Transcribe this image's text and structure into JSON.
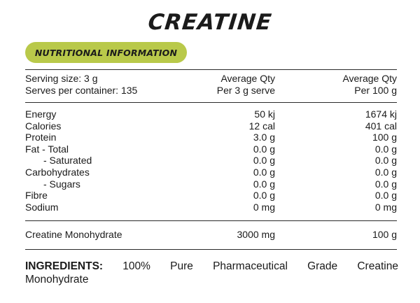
{
  "title": "CREATINE",
  "header_badge": "NUTRITIONAL INFORMATION",
  "serving": {
    "size": "Serving size:  3 g",
    "per_container": "Serves per container: 135",
    "col2_line1": "Average Qty",
    "col2_line2": "Per 3 g serve",
    "col3_line1": "Average Qty",
    "col3_line2": "Per 100 g"
  },
  "nutrients": [
    {
      "name": "Energy",
      "per_serve": "50 kj",
      "per_100g": "1674 kj"
    },
    {
      "name": "Calories",
      "per_serve": "12 cal",
      "per_100g": "401 cal"
    },
    {
      "name": "Protein",
      "per_serve": "3.0 g",
      "per_100g": "100 g"
    },
    {
      "name": "Fat - Total",
      "per_serve": "0.0 g",
      "per_100g": "0.0 g"
    },
    {
      "name": "- Saturated",
      "per_serve": "0.0 g",
      "per_100g": "0.0 g"
    },
    {
      "name": "Carbohydrates",
      "per_serve": "0.0 g",
      "per_100g": "0.0 g"
    },
    {
      "name": "- Sugars",
      "per_serve": "0.0 g",
      "per_100g": "0.0 g"
    },
    {
      "name": "Fibre",
      "per_serve": "0.0 g",
      "per_100g": "0.0 g"
    },
    {
      "name": "Sodium",
      "per_serve": "0 mg",
      "per_100g": "0 mg"
    }
  ],
  "active": {
    "name": "Creatine Monohydrate",
    "per_serve": "3000 mg",
    "per_100g": "100 g"
  },
  "ingredients": {
    "label": "INGREDIENTS:",
    "words": [
      "100%",
      "Pure",
      "Pharmaceutical",
      "Grade",
      "Creatine"
    ],
    "line2": "Monohydrate"
  },
  "colors": {
    "badge": "#b9c94a",
    "text": "#1a1a1a"
  }
}
